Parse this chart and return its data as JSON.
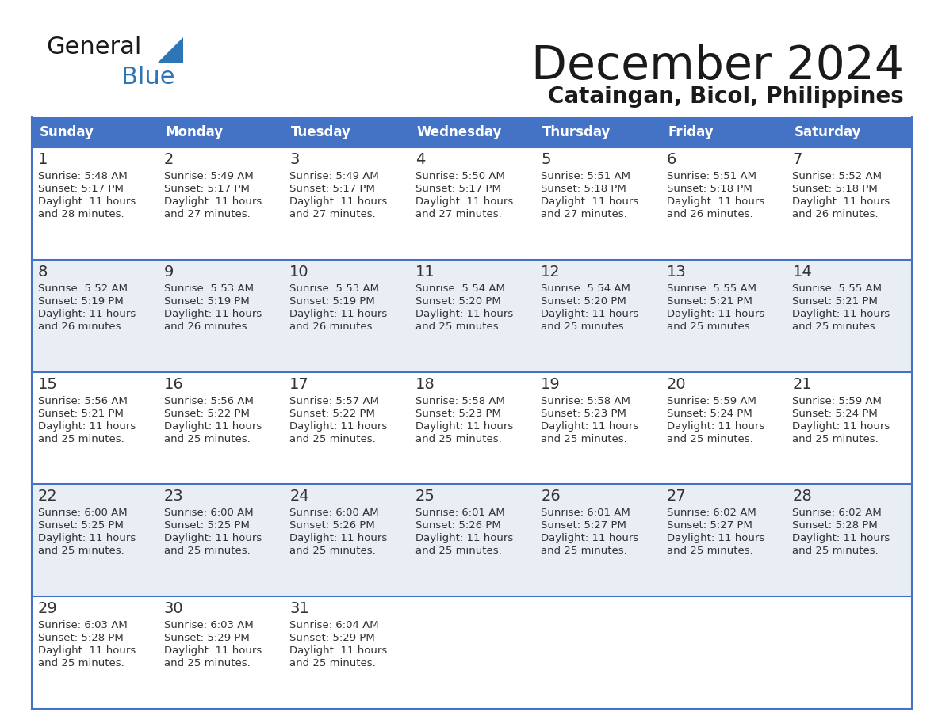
{
  "title": "December 2024",
  "subtitle": "Cataingan, Bicol, Philippines",
  "days_of_week": [
    "Sunday",
    "Monday",
    "Tuesday",
    "Wednesday",
    "Thursday",
    "Friday",
    "Saturday"
  ],
  "header_bg_color": "#4472C4",
  "header_text_color": "#FFFFFF",
  "row_bg_odd": "#DDEEFF",
  "row_bg_even": "#F2F2F2",
  "border_color": "#4472C4",
  "title_color": "#1a1a1a",
  "subtitle_color": "#1a1a1a",
  "cell_text_color": "#333333",
  "day_num_color": "#333333",
  "logo_general_color": "#1a1a1a",
  "logo_blue_color": "#2E75B6",
  "logo_triangle_color": "#2E75B6",
  "calendar": [
    [
      {
        "day": 1,
        "sunrise": "5:48 AM",
        "sunset": "5:17 PM",
        "daylight_hours": 11,
        "daylight_minutes": 28
      },
      {
        "day": 2,
        "sunrise": "5:49 AM",
        "sunset": "5:17 PM",
        "daylight_hours": 11,
        "daylight_minutes": 27
      },
      {
        "day": 3,
        "sunrise": "5:49 AM",
        "sunset": "5:17 PM",
        "daylight_hours": 11,
        "daylight_minutes": 27
      },
      {
        "day": 4,
        "sunrise": "5:50 AM",
        "sunset": "5:17 PM",
        "daylight_hours": 11,
        "daylight_minutes": 27
      },
      {
        "day": 5,
        "sunrise": "5:51 AM",
        "sunset": "5:18 PM",
        "daylight_hours": 11,
        "daylight_minutes": 27
      },
      {
        "day": 6,
        "sunrise": "5:51 AM",
        "sunset": "5:18 PM",
        "daylight_hours": 11,
        "daylight_minutes": 26
      },
      {
        "day": 7,
        "sunrise": "5:52 AM",
        "sunset": "5:18 PM",
        "daylight_hours": 11,
        "daylight_minutes": 26
      }
    ],
    [
      {
        "day": 8,
        "sunrise": "5:52 AM",
        "sunset": "5:19 PM",
        "daylight_hours": 11,
        "daylight_minutes": 26
      },
      {
        "day": 9,
        "sunrise": "5:53 AM",
        "sunset": "5:19 PM",
        "daylight_hours": 11,
        "daylight_minutes": 26
      },
      {
        "day": 10,
        "sunrise": "5:53 AM",
        "sunset": "5:19 PM",
        "daylight_hours": 11,
        "daylight_minutes": 26
      },
      {
        "day": 11,
        "sunrise": "5:54 AM",
        "sunset": "5:20 PM",
        "daylight_hours": 11,
        "daylight_minutes": 25
      },
      {
        "day": 12,
        "sunrise": "5:54 AM",
        "sunset": "5:20 PM",
        "daylight_hours": 11,
        "daylight_minutes": 25
      },
      {
        "day": 13,
        "sunrise": "5:55 AM",
        "sunset": "5:21 PM",
        "daylight_hours": 11,
        "daylight_minutes": 25
      },
      {
        "day": 14,
        "sunrise": "5:55 AM",
        "sunset": "5:21 PM",
        "daylight_hours": 11,
        "daylight_minutes": 25
      }
    ],
    [
      {
        "day": 15,
        "sunrise": "5:56 AM",
        "sunset": "5:21 PM",
        "daylight_hours": 11,
        "daylight_minutes": 25
      },
      {
        "day": 16,
        "sunrise": "5:56 AM",
        "sunset": "5:22 PM",
        "daylight_hours": 11,
        "daylight_minutes": 25
      },
      {
        "day": 17,
        "sunrise": "5:57 AM",
        "sunset": "5:22 PM",
        "daylight_hours": 11,
        "daylight_minutes": 25
      },
      {
        "day": 18,
        "sunrise": "5:58 AM",
        "sunset": "5:23 PM",
        "daylight_hours": 11,
        "daylight_minutes": 25
      },
      {
        "day": 19,
        "sunrise": "5:58 AM",
        "sunset": "5:23 PM",
        "daylight_hours": 11,
        "daylight_minutes": 25
      },
      {
        "day": 20,
        "sunrise": "5:59 AM",
        "sunset": "5:24 PM",
        "daylight_hours": 11,
        "daylight_minutes": 25
      },
      {
        "day": 21,
        "sunrise": "5:59 AM",
        "sunset": "5:24 PM",
        "daylight_hours": 11,
        "daylight_minutes": 25
      }
    ],
    [
      {
        "day": 22,
        "sunrise": "6:00 AM",
        "sunset": "5:25 PM",
        "daylight_hours": 11,
        "daylight_minutes": 25
      },
      {
        "day": 23,
        "sunrise": "6:00 AM",
        "sunset": "5:25 PM",
        "daylight_hours": 11,
        "daylight_minutes": 25
      },
      {
        "day": 24,
        "sunrise": "6:00 AM",
        "sunset": "5:26 PM",
        "daylight_hours": 11,
        "daylight_minutes": 25
      },
      {
        "day": 25,
        "sunrise": "6:01 AM",
        "sunset": "5:26 PM",
        "daylight_hours": 11,
        "daylight_minutes": 25
      },
      {
        "day": 26,
        "sunrise": "6:01 AM",
        "sunset": "5:27 PM",
        "daylight_hours": 11,
        "daylight_minutes": 25
      },
      {
        "day": 27,
        "sunrise": "6:02 AM",
        "sunset": "5:27 PM",
        "daylight_hours": 11,
        "daylight_minutes": 25
      },
      {
        "day": 28,
        "sunrise": "6:02 AM",
        "sunset": "5:28 PM",
        "daylight_hours": 11,
        "daylight_minutes": 25
      }
    ],
    [
      {
        "day": 29,
        "sunrise": "6:03 AM",
        "sunset": "5:28 PM",
        "daylight_hours": 11,
        "daylight_minutes": 25
      },
      {
        "day": 30,
        "sunrise": "6:03 AM",
        "sunset": "5:29 PM",
        "daylight_hours": 11,
        "daylight_minutes": 25
      },
      {
        "day": 31,
        "sunrise": "6:04 AM",
        "sunset": "5:29 PM",
        "daylight_hours": 11,
        "daylight_minutes": 25
      },
      null,
      null,
      null,
      null
    ]
  ]
}
